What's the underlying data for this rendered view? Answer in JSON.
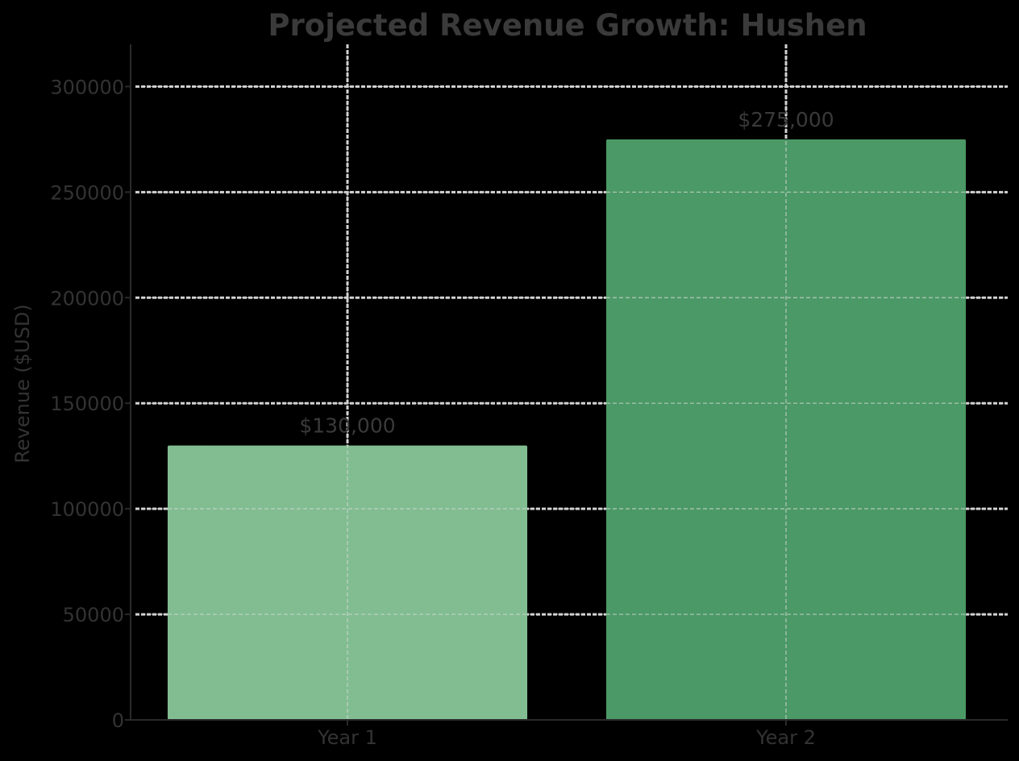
{
  "chart_data": {
    "type": "bar",
    "title": "Projected Revenue Growth: Hushen",
    "xlabel": "",
    "ylabel": "Revenue ($USD)",
    "categories": [
      "Year 1",
      "Year 2"
    ],
    "values": [
      130000,
      275000
    ],
    "data_labels": [
      "$130,000",
      "$275,000"
    ],
    "bar_colors": [
      "#81bd91",
      "#4b9966"
    ],
    "ylim": [
      0,
      320000
    ],
    "yticks": [
      0,
      50000,
      100000,
      150000,
      200000,
      250000,
      300000
    ],
    "ytick_labels": [
      "0",
      "50000",
      "100000",
      "150000",
      "200000",
      "250000",
      "300000"
    ],
    "grid": true,
    "legend": "none"
  },
  "colors": {
    "background": "#000000",
    "grid": "#cfcfcf",
    "text": "#333333",
    "title": "#3a3a3a"
  }
}
